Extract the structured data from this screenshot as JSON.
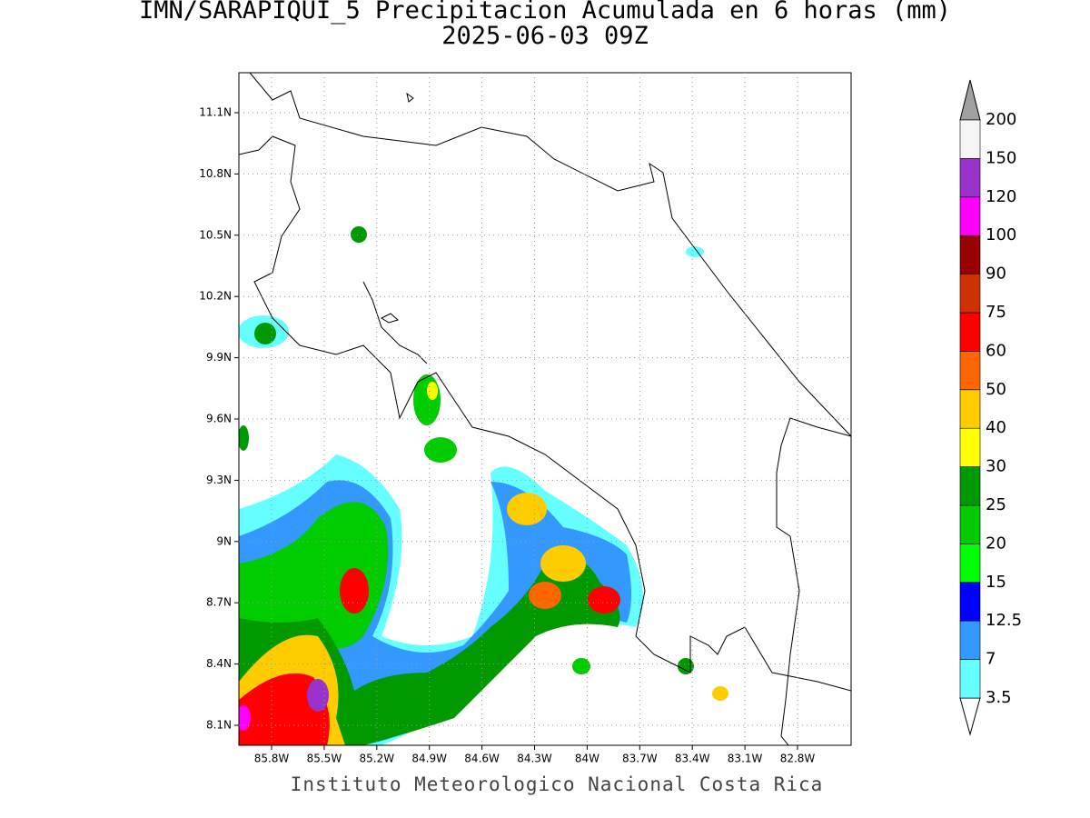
{
  "title": "IMN/SARAPIQUI_5 Precipitacion Acumulada en 6 horas (mm)",
  "subtitle": "2025-06-03 09Z",
  "map": {
    "lat_ticks": [
      "11.1N",
      "10.8N",
      "10.5N",
      "10.2N",
      "9.9N",
      "9.6N",
      "9.3N",
      "9N",
      "8.7N",
      "8.4N",
      "8.1N"
    ],
    "lon_ticks": [
      "85.8W",
      "85.5W",
      "85.2W",
      "84.9W",
      "84.6W",
      "84.3W",
      "84W",
      "83.7W",
      "83.4W",
      "83.1W",
      "82.8W"
    ],
    "grid": true
  },
  "colorbar": {
    "labels": [
      "3.5",
      "7",
      "12.5",
      "15",
      "20",
      "25",
      "30",
      "40",
      "50",
      "60",
      "75",
      "90",
      "100",
      "120",
      "150",
      "200"
    ],
    "colors": [
      "#66ffff",
      "#3399ff",
      "#0000ff",
      "#00ff00",
      "#00cc00",
      "#009900",
      "#ffff00",
      "#ffcc00",
      "#ff6600",
      "#ff0000",
      "#cc3300",
      "#990000",
      "#ff00ff",
      "#9933cc",
      "#f5f5f5"
    ],
    "below_color": "#ffffff",
    "above_color": "#a0a0a0"
  },
  "footer": "Instituto Meteorologico Nacional Costa Rica"
}
